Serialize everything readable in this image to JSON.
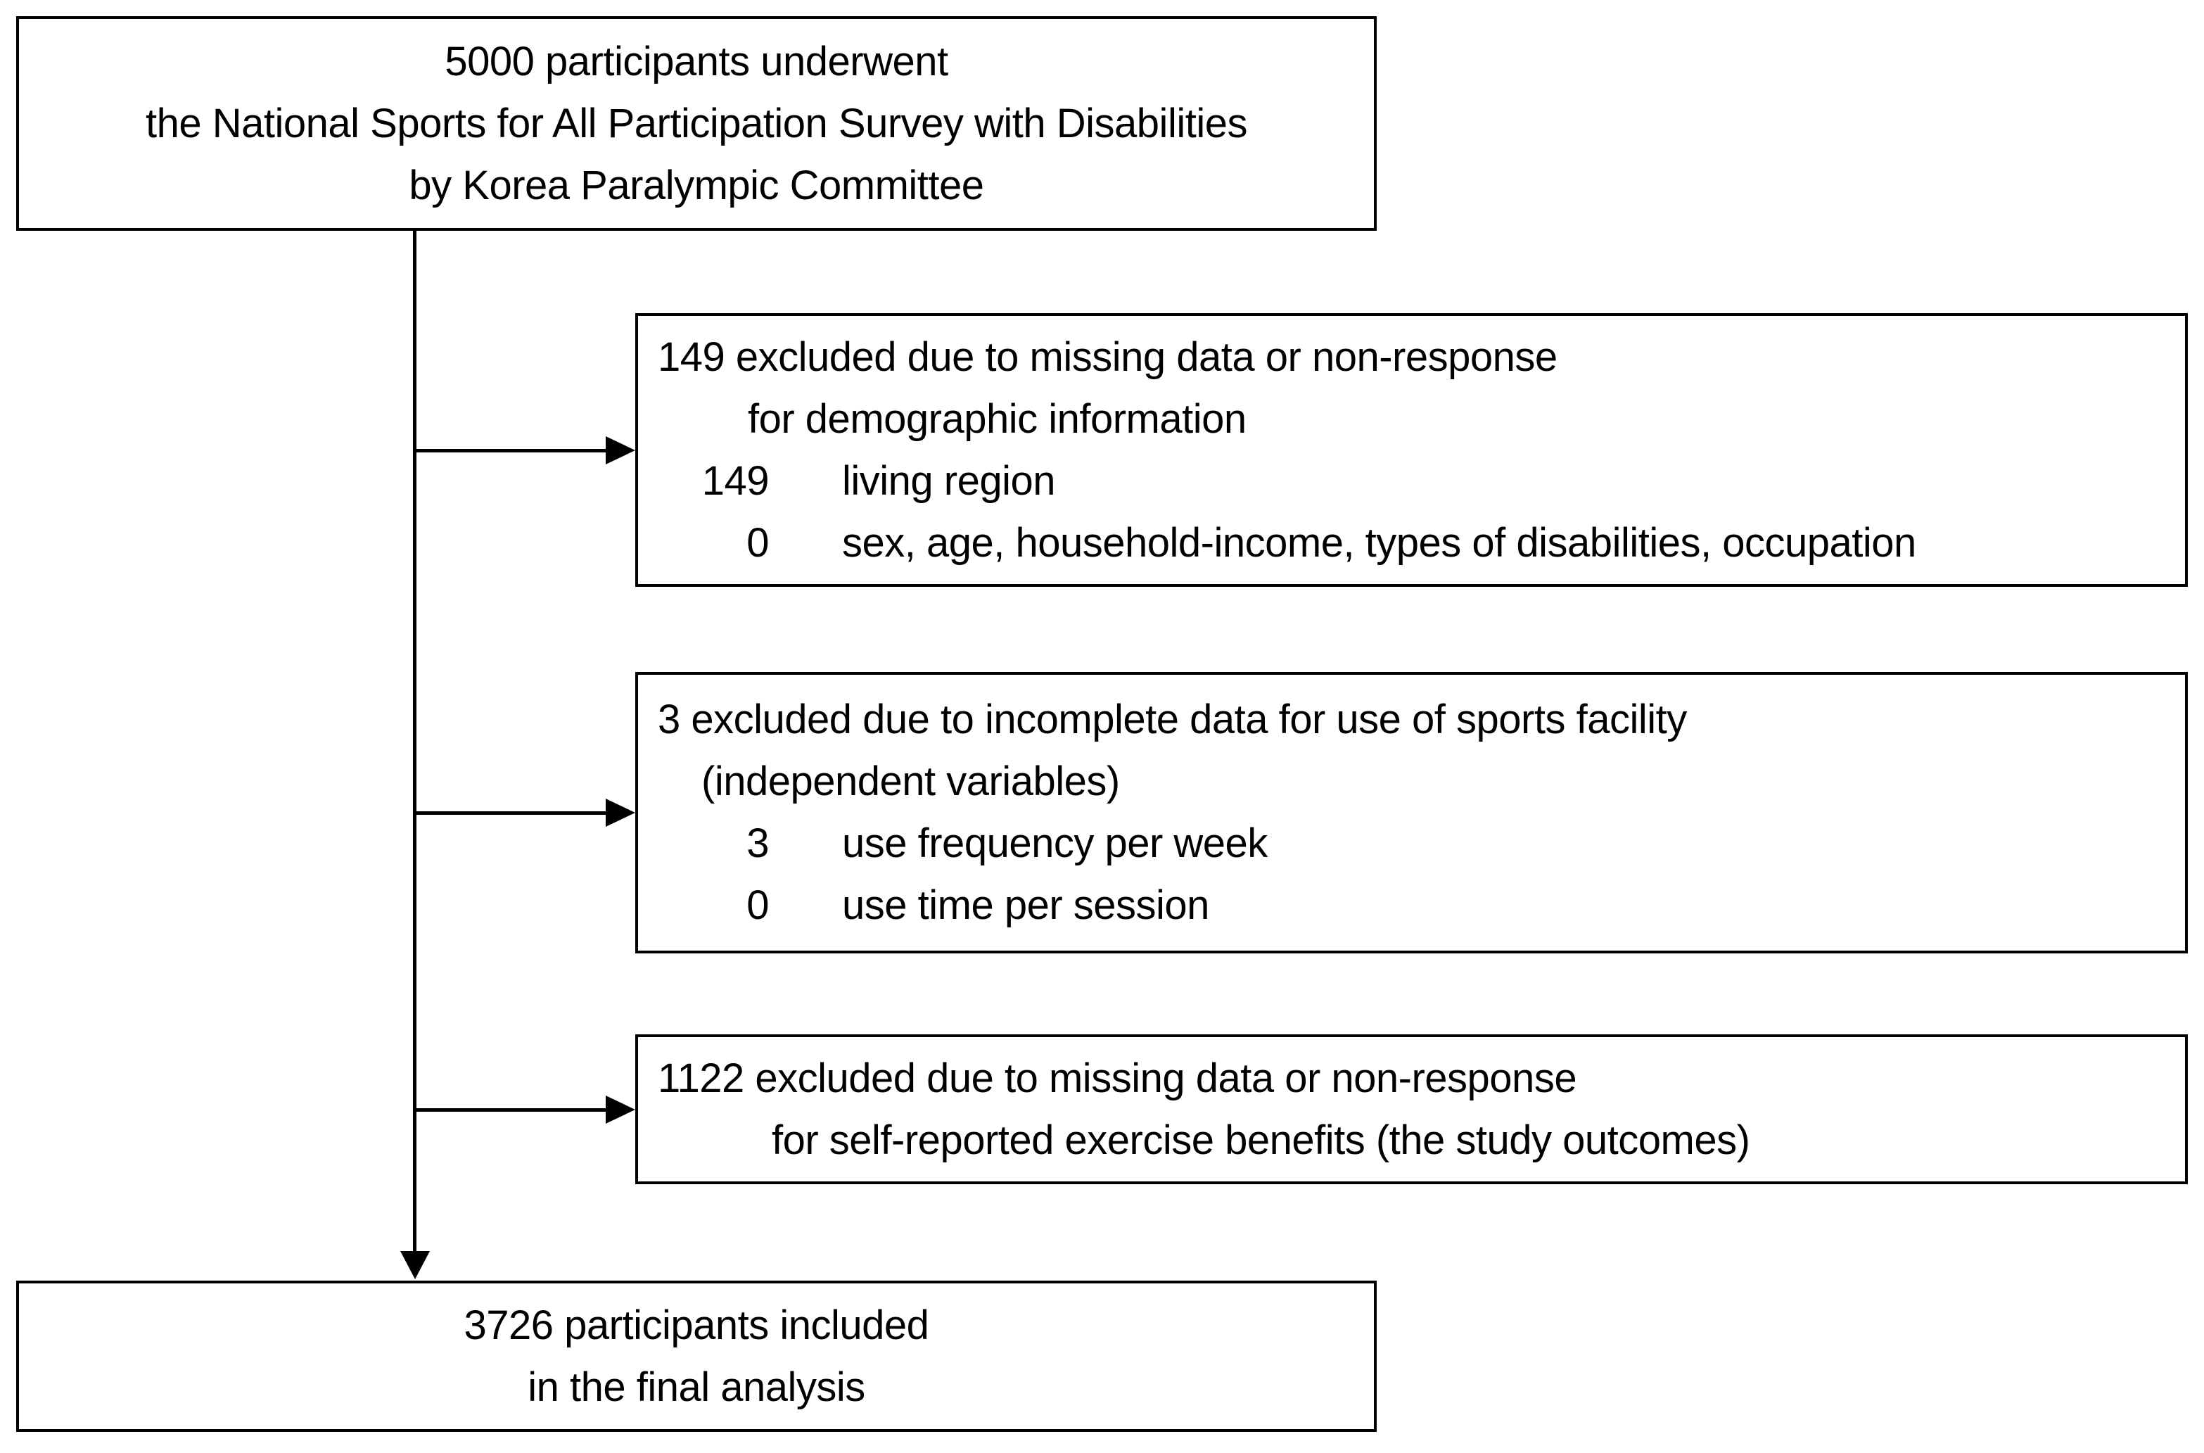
{
  "colors": {
    "ink": "#000000",
    "paper": "#ffffff"
  },
  "flow": {
    "top": {
      "lines": [
        "5000 participants underwent",
        "the National Sports for All Participation Survey with Disabilities",
        "by Korea Paralympic Committee"
      ]
    },
    "exclusions": [
      {
        "heading": "149 excluded due to missing data or non-response",
        "subheading": "for demographic information",
        "items": [
          {
            "count": "149",
            "label": "living region"
          },
          {
            "count": "0",
            "label": "sex, age, household-income, types of disabilities, occupation"
          }
        ]
      },
      {
        "heading": "3 excluded due to incomplete data for use of sports facility",
        "subheading": "(independent variables)",
        "items": [
          {
            "count": "3",
            "label": "use frequency per week"
          },
          {
            "count": "0",
            "label": "use time per session"
          }
        ]
      },
      {
        "heading": "1122 excluded due to missing data or non-response",
        "subheading": "for self-reported exercise benefits (the study outcomes)",
        "items": []
      }
    ],
    "final": {
      "lines": [
        "3726 participants included",
        "in the final analysis"
      ]
    }
  }
}
